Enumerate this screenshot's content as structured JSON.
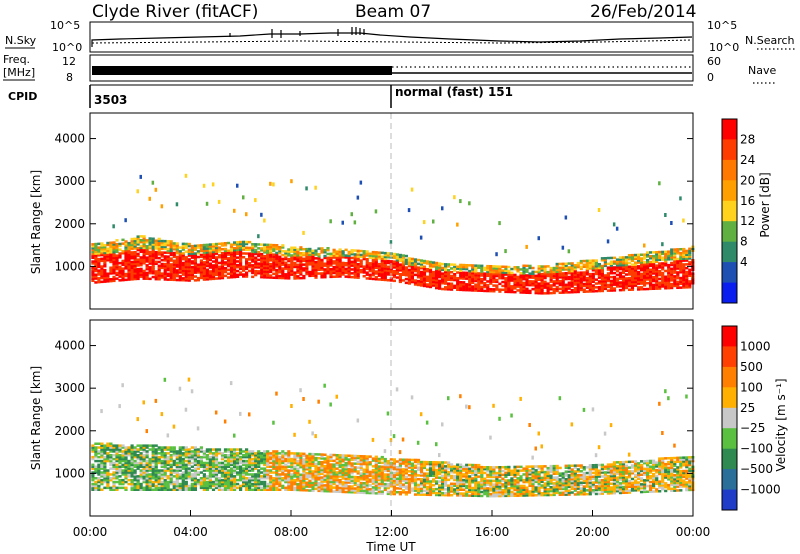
{
  "header": {
    "station": "Clyde River (fitACF)",
    "beam": "Beam 07",
    "date": "26/Feb/2014"
  },
  "top_panels": {
    "nsky_label": "N.Sky",
    "nsky_ticks": [
      "10^5",
      "10^0"
    ],
    "nsearch_label": "N.Search",
    "nsearch_ticks": [
      "10^5",
      "10^0"
    ],
    "freq_label_line1": "Freq.",
    "freq_label_line2": "[MHz]",
    "freq_ticks": [
      "12",
      "8"
    ],
    "nave_label": "Nave",
    "nave_ticks": [
      "60",
      "0"
    ],
    "cpid_label": "CPID",
    "cpid_segments": [
      {
        "start": "00:00",
        "text": "3503"
      },
      {
        "start": "12:00",
        "text": "normal (fast) 151"
      }
    ]
  },
  "chart_data": [
    {
      "type": "heatmap",
      "title": "",
      "xlabel": "",
      "ylabel": "Slant Range [km]",
      "x_range": [
        "00:00",
        "24:00"
      ],
      "ylim": [
        0,
        4600
      ],
      "y_ticks": [
        1000,
        2000,
        3000,
        4000
      ],
      "colorbar": {
        "label": "Power [dB]",
        "tick_labels": [
          "4",
          "8",
          "12",
          "16",
          "20",
          "24",
          "28"
        ],
        "colors": [
          "#0a1ef0",
          "#1e50b4",
          "#2f8a6a",
          "#5fb040",
          "#ffd21e",
          "#ffa000",
          "#ff7800",
          "#ff3c00",
          "#ff0000"
        ]
      },
      "scatter_band_km": [
        {
          "time": "00:00",
          "lower": 600,
          "upper": 1500
        },
        {
          "time": "02:00",
          "lower": 700,
          "upper": 1700
        },
        {
          "time": "04:00",
          "lower": 650,
          "upper": 1500
        },
        {
          "time": "06:00",
          "lower": 750,
          "upper": 1600
        },
        {
          "time": "08:00",
          "lower": 700,
          "upper": 1450
        },
        {
          "time": "10:00",
          "lower": 750,
          "upper": 1400
        },
        {
          "time": "12:00",
          "lower": 650,
          "upper": 1300
        },
        {
          "time": "14:00",
          "lower": 450,
          "upper": 1050
        },
        {
          "time": "16:00",
          "lower": 400,
          "upper": 1000
        },
        {
          "time": "18:00",
          "lower": 350,
          "upper": 1000
        },
        {
          "time": "20:00",
          "lower": 400,
          "upper": 1150
        },
        {
          "time": "22:00",
          "lower": 450,
          "upper": 1300
        },
        {
          "time": "24:00",
          "lower": 500,
          "upper": 1450
        }
      ]
    },
    {
      "type": "heatmap",
      "title": "",
      "xlabel": "Time UT",
      "ylabel": "Slant Range [km]",
      "x_range": [
        "00:00",
        "24:00"
      ],
      "x_ticks": [
        "00:00",
        "04:00",
        "08:00",
        "12:00",
        "16:00",
        "20:00",
        "00:00"
      ],
      "ylim": [
        0,
        4600
      ],
      "y_ticks": [
        1000,
        2000,
        3000,
        4000
      ],
      "colorbar": {
        "label": "Velocity [m s⁻¹]",
        "tick_labels": [
          "1000",
          "500",
          "100",
          "25",
          "−25",
          "−100",
          "−500",
          "−1000"
        ],
        "colors": [
          "#1e3cc8",
          "#2a6e9a",
          "#2e8a50",
          "#5ac040",
          "#c8c8c8",
          "#ffb000",
          "#ff8000",
          "#ff4000",
          "#ff0000"
        ]
      },
      "scatter_band_km": [
        {
          "time": "00:00",
          "lower": 600,
          "upper": 1700
        },
        {
          "time": "04:00",
          "lower": 600,
          "upper": 1600
        },
        {
          "time": "08:00",
          "lower": 600,
          "upper": 1500
        },
        {
          "time": "12:00",
          "lower": 500,
          "upper": 1350
        },
        {
          "time": "16:00",
          "lower": 450,
          "upper": 1150
        },
        {
          "time": "20:00",
          "lower": 500,
          "upper": 1200
        },
        {
          "time": "24:00",
          "lower": 600,
          "upper": 1400
        }
      ]
    }
  ]
}
